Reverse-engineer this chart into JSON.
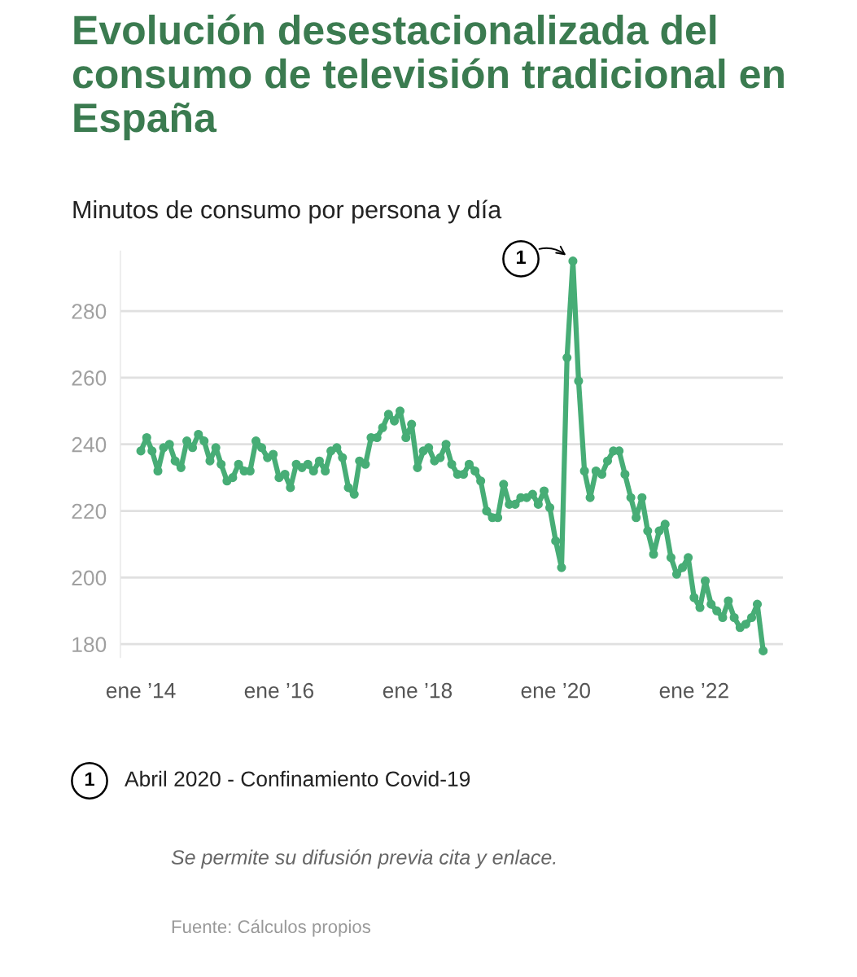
{
  "chart_data": {
    "type": "line",
    "title": "Evolución desestacionalizada del consumo de televisión tradicional en España",
    "subtitle": "Minutos de consumo por persona y día",
    "x": [
      "2014-01",
      "2014-02",
      "2014-03",
      "2014-04",
      "2014-05",
      "2014-06",
      "2014-07",
      "2014-08",
      "2014-09",
      "2014-10",
      "2014-11",
      "2014-12",
      "2015-01",
      "2015-02",
      "2015-03",
      "2015-04",
      "2015-05",
      "2015-06",
      "2015-07",
      "2015-08",
      "2015-09",
      "2015-10",
      "2015-11",
      "2015-12",
      "2016-01",
      "2016-02",
      "2016-03",
      "2016-04",
      "2016-05",
      "2016-06",
      "2016-07",
      "2016-08",
      "2016-09",
      "2016-10",
      "2016-11",
      "2016-12",
      "2017-01",
      "2017-02",
      "2017-03",
      "2017-04",
      "2017-05",
      "2017-06",
      "2017-07",
      "2017-08",
      "2017-09",
      "2017-10",
      "2017-11",
      "2017-12",
      "2018-01",
      "2018-02",
      "2018-03",
      "2018-04",
      "2018-05",
      "2018-06",
      "2018-07",
      "2018-08",
      "2018-09",
      "2018-10",
      "2018-11",
      "2018-12",
      "2019-01",
      "2019-02",
      "2019-03",
      "2019-04",
      "2019-05",
      "2019-06",
      "2019-07",
      "2019-08",
      "2019-09",
      "2019-10",
      "2019-11",
      "2019-12",
      "2020-01",
      "2020-02",
      "2020-03",
      "2020-04",
      "2020-05",
      "2020-06",
      "2020-07",
      "2020-08",
      "2020-09",
      "2020-10",
      "2020-11",
      "2020-12",
      "2021-01",
      "2021-02",
      "2021-03",
      "2021-04",
      "2021-05",
      "2021-06",
      "2021-07",
      "2021-08",
      "2021-09",
      "2021-10",
      "2021-11",
      "2021-12",
      "2022-01",
      "2022-02",
      "2022-03",
      "2022-04",
      "2022-05",
      "2022-06",
      "2022-07",
      "2022-08",
      "2022-09",
      "2022-10",
      "2022-11",
      "2022-12",
      "2023-01"
    ],
    "series": [
      {
        "color": "#47ad76",
        "values": [
          238,
          242,
          238,
          232,
          239,
          240,
          235,
          233,
          241,
          239,
          243,
          241,
          235,
          239,
          234,
          229,
          230,
          234,
          232,
          232,
          241,
          239,
          236,
          237,
          230,
          231,
          227,
          234,
          233,
          234,
          232,
          235,
          232,
          238,
          239,
          236,
          227,
          225,
          235,
          234,
          242,
          242,
          245,
          249,
          247,
          250,
          242,
          246,
          233,
          238,
          239,
          235,
          236,
          240,
          234,
          231,
          231,
          234,
          232,
          229,
          220,
          218,
          218,
          228,
          222,
          222,
          224,
          224,
          225,
          222,
          226,
          221,
          211,
          203,
          266,
          295,
          259,
          232,
          224,
          232,
          231,
          235,
          238,
          238,
          231,
          224,
          218,
          224,
          214,
          207,
          214,
          216,
          206,
          201,
          203,
          206,
          194,
          191,
          199,
          192,
          190,
          188,
          193,
          188,
          185,
          186,
          188,
          192,
          178
        ]
      }
    ],
    "xlim": [
      "2013-09-15",
      "2023-04-15"
    ],
    "xticks": [
      {
        "value": "2014-01",
        "label": "ene ’14"
      },
      {
        "value": "2016-01",
        "label": "ene ’16"
      },
      {
        "value": "2018-01",
        "label": "ene ’18"
      },
      {
        "value": "2020-01",
        "label": "ene ’20"
      },
      {
        "value": "2022-01",
        "label": "ene ’22"
      }
    ],
    "ylim": [
      176,
      298
    ],
    "yticks": [
      180,
      200,
      220,
      240,
      260,
      280
    ],
    "grid": "y",
    "marker": "circle",
    "line_style": "solid",
    "annotations": [
      {
        "text": "1",
        "x": "2020-04",
        "y": 295
      },
      "Abril 2020 - Confinamiento Covid-19",
      "Se permite su difusión previa cita y enlace.",
      "Fuente: Cálculos propios"
    ]
  }
}
